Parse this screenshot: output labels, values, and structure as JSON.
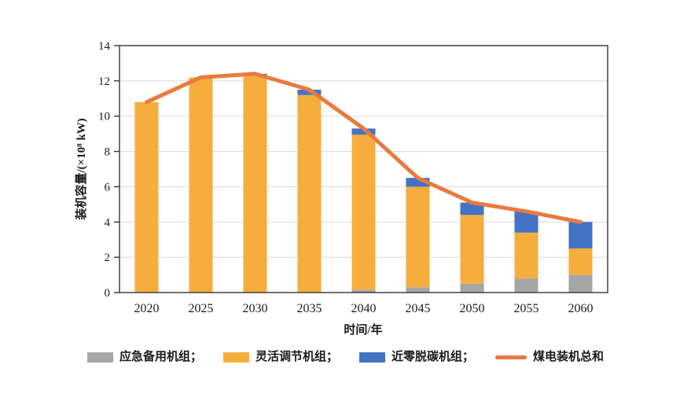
{
  "chart_data": {
    "type": "bar",
    "subtype": "stacked-bars-with-total-line",
    "categories": [
      "2020",
      "2025",
      "2030",
      "2035",
      "2040",
      "2045",
      "2050",
      "2055",
      "2060"
    ],
    "series": [
      {
        "name": "应急备用机组",
        "render": "bar",
        "color": "#A6A6A6",
        "values": [
          0,
          0,
          0,
          0,
          0.15,
          0.3,
          0.5,
          0.8,
          1.0
        ]
      },
      {
        "name": "灵活调节机组",
        "render": "bar",
        "color": "#F5AE3D",
        "values": [
          10.8,
          12.2,
          12.3,
          11.2,
          8.8,
          5.7,
          3.9,
          2.6,
          1.5
        ]
      },
      {
        "name": "近零脱碳机组",
        "render": "bar",
        "color": "#4472C4",
        "values": [
          0,
          0,
          0.1,
          0.3,
          0.35,
          0.5,
          0.7,
          1.2,
          1.5
        ]
      },
      {
        "name": "煤电装机总和",
        "render": "line",
        "color": "#E87A3F",
        "values": [
          10.8,
          12.2,
          12.4,
          11.5,
          9.3,
          6.5,
          5.1,
          4.6,
          4.0
        ]
      }
    ],
    "title": "",
    "xlabel": "时间/年",
    "ylabel": "装机容量/(×10⁸ kW)",
    "ylim": [
      0,
      14
    ],
    "ytick_step": 2,
    "grid": true,
    "legend_position": "bottom"
  },
  "axes": {
    "y_ticks": [
      "0",
      "2",
      "4",
      "6",
      "8",
      "10",
      "12",
      "14"
    ],
    "x_ticks": [
      "2020",
      "2025",
      "2030",
      "2035",
      "2040",
      "2045",
      "2050",
      "2055",
      "2060"
    ]
  },
  "legend": {
    "items": [
      {
        "label": "应急备用机组；",
        "color": "#A6A6A6",
        "swatch": "rect"
      },
      {
        "label": "灵活调节机组；",
        "color": "#F5AE3D",
        "swatch": "rect"
      },
      {
        "label": "近零脱碳机组；",
        "color": "#4472C4",
        "swatch": "rect"
      },
      {
        "label": "煤电装机总和",
        "color": "#E87A3F",
        "swatch": "line"
      }
    ]
  },
  "colors": {
    "gridline": "#D9D9D9",
    "plot_border": "#333333",
    "background": "#FFFFFF"
  }
}
